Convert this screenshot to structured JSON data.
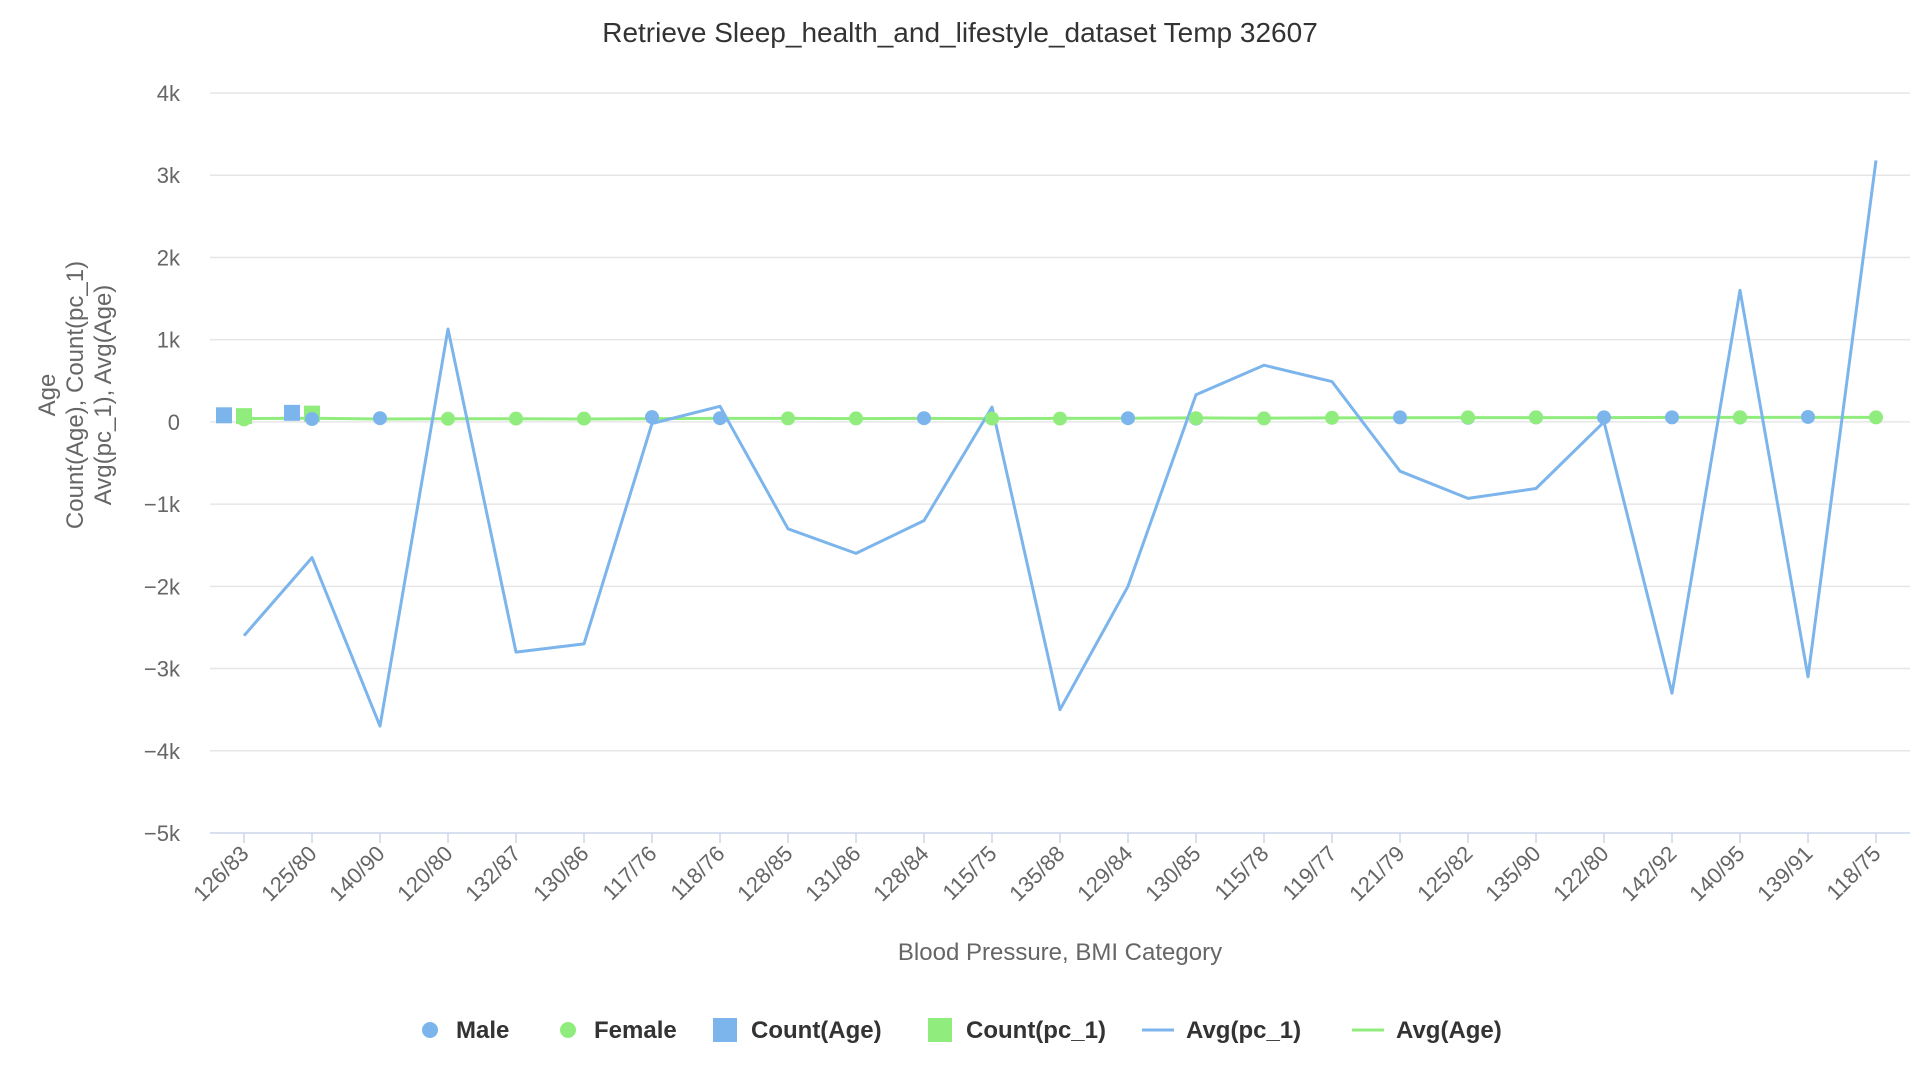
{
  "chart_data": {
    "type": "line",
    "title": "Retrieve Sleep_health_and_lifestyle_dataset Temp 32607",
    "xlabel": "Blood Pressure, BMI Category",
    "ylabel_lines": [
      "Age",
      "Count(Age), Count(pc_1)",
      "Avg(pc_1), Avg(Age)"
    ],
    "ylim": [
      -5000,
      4000
    ],
    "yticks": [
      4000,
      3000,
      2000,
      1000,
      0,
      -1000,
      -2000,
      -3000,
      -4000,
      -5000
    ],
    "ytick_labels": [
      "4k",
      "3k",
      "2k",
      "1k",
      "0",
      "−1k",
      "−2k",
      "−3k",
      "−4k",
      "−5k"
    ],
    "grid": true,
    "legend_position": "bottom-center",
    "categories": [
      "126/83",
      "125/80",
      "140/90",
      "120/80",
      "132/87",
      "130/86",
      "117/76",
      "118/76",
      "128/85",
      "131/86",
      "128/84",
      "115/75",
      "135/88",
      "129/84",
      "130/85",
      "115/78",
      "119/77",
      "121/79",
      "125/82",
      "135/90",
      "122/80",
      "142/92",
      "140/95",
      "139/91",
      "118/75"
    ],
    "legend": [
      {
        "name": "Male",
        "symbol": "circle",
        "color": "#7cb5ec"
      },
      {
        "name": "Female",
        "symbol": "circle",
        "color": "#90ed7d"
      },
      {
        "name": "Count(Age)",
        "symbol": "square",
        "color": "#7cb5ec"
      },
      {
        "name": "Count(pc_1)",
        "symbol": "square",
        "color": "#90ed7d"
      },
      {
        "name": "Avg(pc_1)",
        "symbol": "line",
        "color": "#7cb5ec"
      },
      {
        "name": "Avg(Age)",
        "symbol": "line",
        "color": "#90ed7d"
      }
    ],
    "series": [
      {
        "name": "Male",
        "type": "scatter",
        "color": "#7cb5ec",
        "values": [
          null,
          35,
          45,
          null,
          null,
          null,
          58,
          45,
          null,
          null,
          45,
          null,
          null,
          45,
          40,
          null,
          null,
          55,
          50,
          55,
          55,
          55,
          55,
          60,
          null
        ]
      },
      {
        "name": "Female",
        "type": "scatter",
        "color": "#90ed7d",
        "values": [
          30,
          null,
          null,
          38,
          40,
          40,
          null,
          null,
          42,
          42,
          null,
          40,
          40,
          null,
          45,
          42,
          50,
          null,
          55,
          55,
          null,
          null,
          55,
          null,
          55
        ]
      },
      {
        "name": "Count(Age)",
        "type": "column",
        "color": "#7cb5ec",
        "values": [
          80,
          110,
          null,
          null,
          null,
          null,
          null,
          null,
          null,
          null,
          null,
          null,
          null,
          null,
          null,
          null,
          null,
          null,
          null,
          null,
          null,
          null,
          null,
          null,
          null
        ]
      },
      {
        "name": "Count(pc_1)",
        "type": "column",
        "color": "#90ed7d",
        "values": [
          70,
          100,
          null,
          null,
          null,
          null,
          null,
          null,
          null,
          null,
          null,
          null,
          null,
          null,
          null,
          null,
          null,
          null,
          null,
          null,
          null,
          null,
          null,
          null,
          null
        ]
      },
      {
        "name": "Avg(pc_1)",
        "type": "line",
        "color": "#7cb5ec",
        "values": [
          -2600,
          -1650,
          -3700,
          1130,
          -2800,
          -2700,
          -20,
          190,
          -1300,
          -1600,
          -1200,
          180,
          -3500,
          -2000,
          330,
          690,
          490,
          -600,
          -930,
          -810,
          0,
          -3300,
          1600,
          -3100,
          3180
        ]
      },
      {
        "name": "Avg(Age)",
        "type": "line",
        "color": "#90ed7d",
        "values": [
          40,
          45,
          35,
          38,
          38,
          35,
          40,
          42,
          42,
          40,
          42,
          40,
          42,
          45,
          48,
          45,
          48,
          50,
          52,
          52,
          52,
          55,
          55,
          55,
          55
        ]
      }
    ]
  }
}
